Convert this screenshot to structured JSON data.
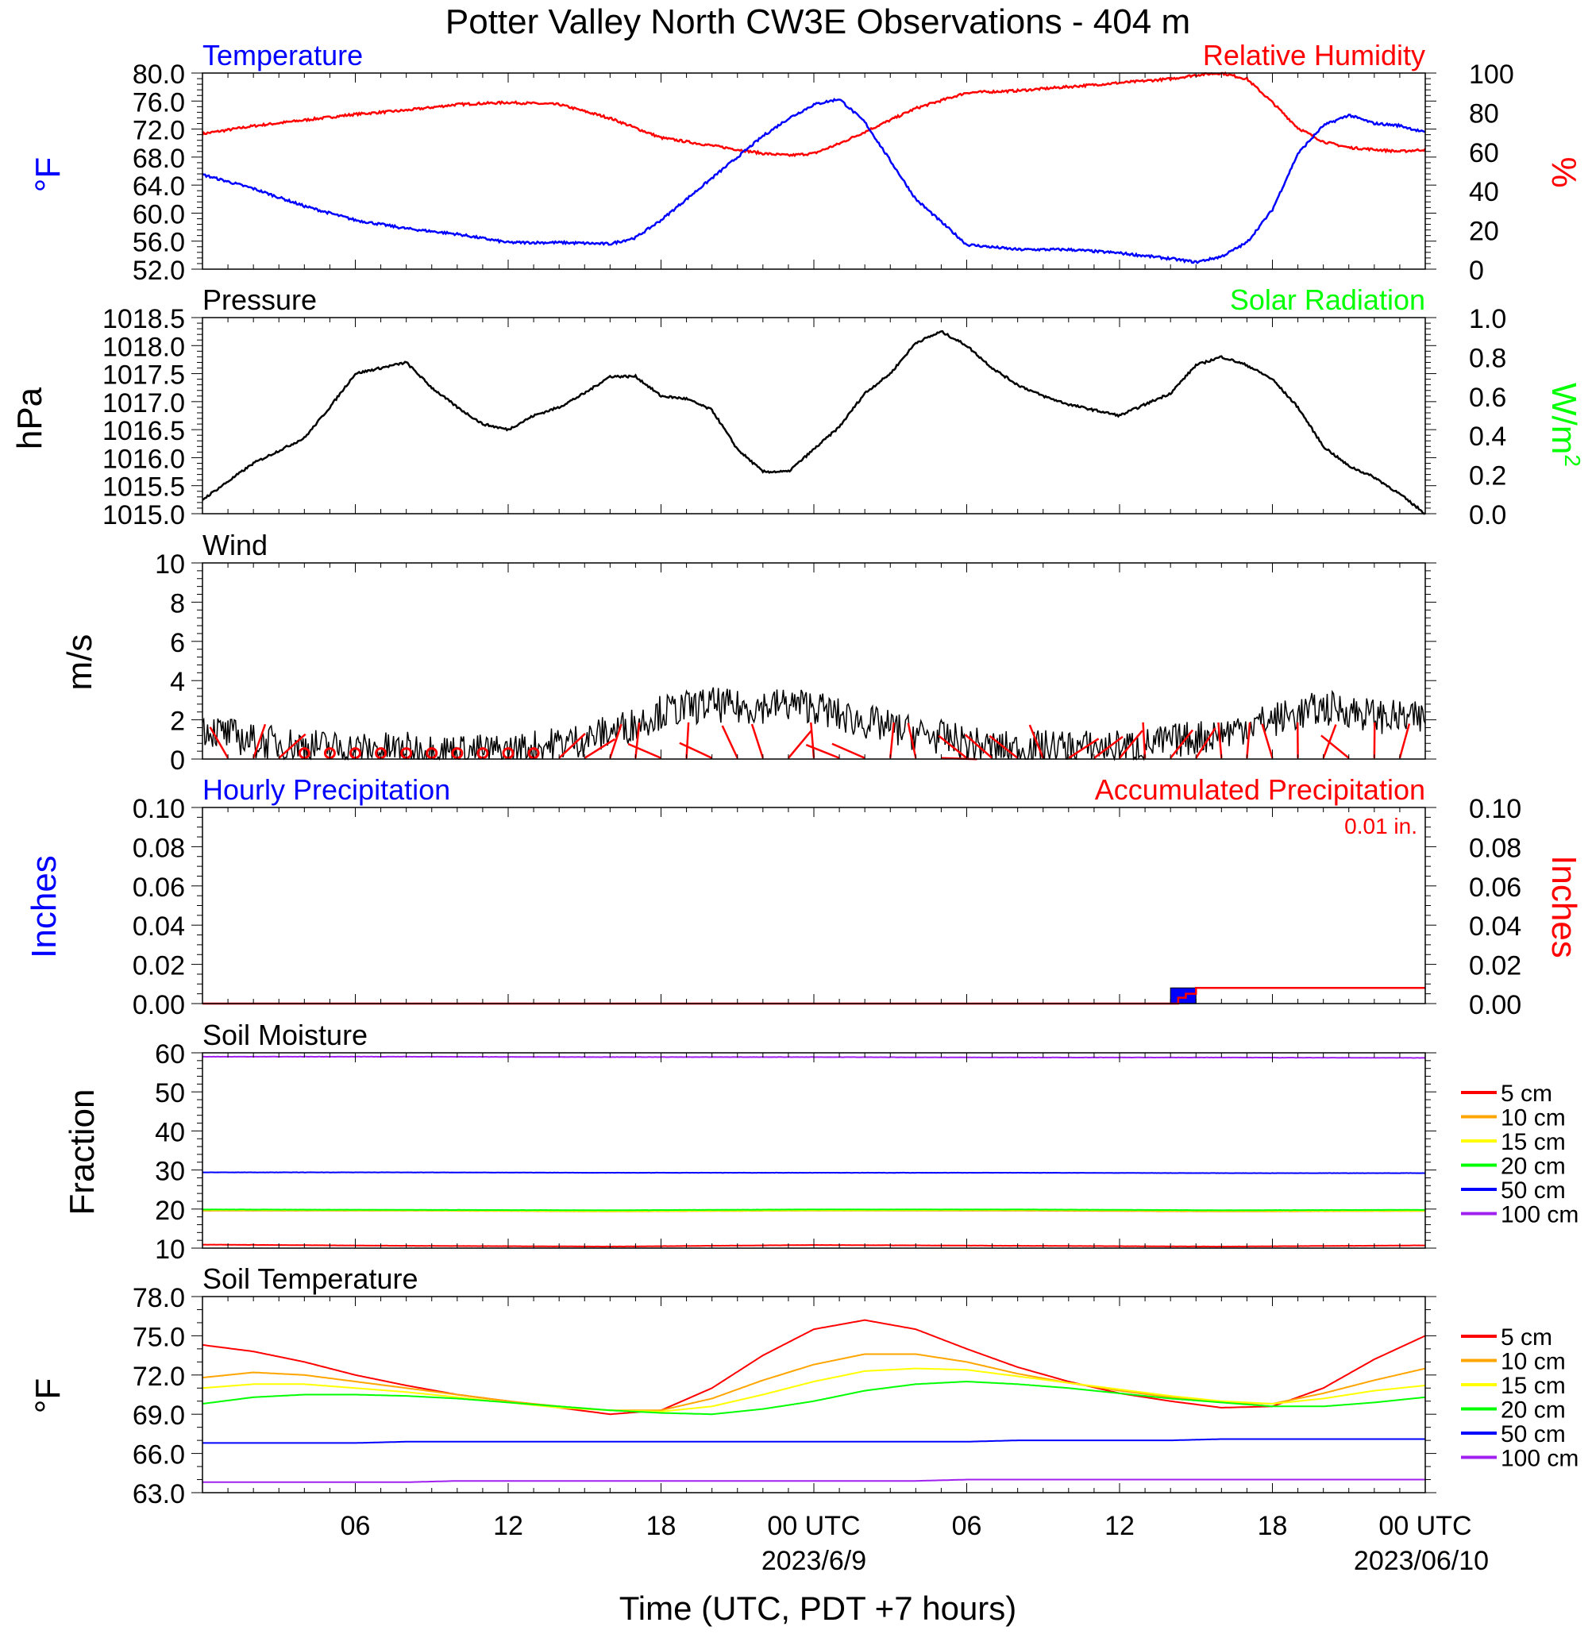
{
  "figure": {
    "title": "Potter Valley North CW3E Observations - 404 m",
    "xlabel": "Time (UTC, PDT +7 hours)",
    "x_ticks": [
      "06",
      "12",
      "18",
      "00 UTC",
      "06",
      "12",
      "18",
      "00 UTC"
    ],
    "x_dates": [
      "2023/6/9",
      "2023/06/10"
    ]
  },
  "colors": {
    "temperature": "#0000ff",
    "humidity": "#ff0000",
    "pressure": "#000000",
    "solar": "#00ff00",
    "wind": "#000000",
    "barbs": "#ff0000",
    "hourly_precip": "#0000ff",
    "accum_precip": "#ff0000",
    "d5": "#ff0000",
    "d10": "#ffa500",
    "d15": "#ffff00",
    "d20": "#00ff00",
    "d50": "#0000ff",
    "d100": "#a020f0"
  },
  "chart_data": [
    {
      "type": "line",
      "title": "Temperature",
      "title_right": "Relative Humidity",
      "ylabel": "°F",
      "ylabel_right": "%",
      "ylim": [
        52,
        80
      ],
      "ylim_right": [
        0,
        100
      ],
      "y_ticks": [
        "80.0",
        "76.0",
        "72.0",
        "68.0",
        "64.0",
        "60.0",
        "56.0",
        "52.0"
      ],
      "y_ticks_right": [
        "100",
        "80",
        "60",
        "40",
        "20",
        "0"
      ],
      "x": [
        0,
        2,
        4,
        6,
        8,
        10,
        12,
        14,
        16,
        17,
        18,
        20,
        22,
        23,
        24,
        25,
        26,
        28,
        30,
        32,
        34,
        36,
        38,
        39,
        40,
        41,
        42,
        43,
        44,
        45,
        46,
        47,
        48
      ],
      "series": [
        {
          "name": "Temperature",
          "axis": "left",
          "values": [
            65.5,
            63.5,
            61.0,
            59.0,
            57.8,
            57.0,
            55.8,
            55.8,
            55.6,
            56.5,
            59.0,
            65.0,
            71.0,
            73.5,
            75.5,
            76.3,
            73.0,
            62.0,
            55.5,
            54.8,
            54.8,
            54.3,
            53.5,
            53.0,
            53.8,
            55.8,
            60.5,
            68.5,
            72.5,
            74.0,
            72.8,
            72.5,
            71.5
          ]
        },
        {
          "name": "Relative Humidity",
          "axis": "right",
          "values": [
            69,
            73,
            76,
            79,
            81,
            84,
            85,
            84,
            77,
            72,
            67,
            63,
            59,
            58,
            59,
            64,
            70,
            82,
            90,
            91,
            93,
            95,
            97,
            99,
            100,
            97,
            85,
            72,
            65,
            62,
            61,
            60,
            61
          ]
        }
      ]
    },
    {
      "type": "line",
      "title": "Pressure",
      "title_right": "Solar Radiation",
      "ylabel": "hPa",
      "ylabel_right": "W/m",
      "ylabel_right_sup": "2",
      "ylim": [
        1015.0,
        1018.5
      ],
      "ylim_right": [
        0.0,
        1.0
      ],
      "y_ticks": [
        "1018.5",
        "1018.0",
        "1017.5",
        "1017.0",
        "1016.5",
        "1016.0",
        "1015.5",
        "1015.0"
      ],
      "y_ticks_right": [
        "1.0",
        "0.8",
        "0.6",
        "0.4",
        "0.2",
        "0.0"
      ],
      "x": [
        0,
        2,
        4,
        5,
        6,
        8,
        9,
        10,
        11,
        12,
        13,
        14,
        15,
        16,
        17,
        18,
        19,
        20,
        21,
        22,
        23,
        24,
        25,
        26,
        27,
        28,
        29,
        30,
        31,
        32,
        33,
        34,
        35,
        36,
        37,
        38,
        39,
        40,
        41,
        42,
        43,
        44,
        45,
        46,
        47,
        48
      ],
      "series": [
        {
          "name": "Pressure",
          "axis": "left",
          "values": [
            1015.25,
            1015.9,
            1016.35,
            1016.9,
            1017.5,
            1017.7,
            1017.25,
            1016.9,
            1016.6,
            1016.5,
            1016.75,
            1016.9,
            1017.15,
            1017.45,
            1017.45,
            1017.1,
            1017.05,
            1016.85,
            1016.15,
            1015.75,
            1015.75,
            1016.15,
            1016.55,
            1017.15,
            1017.5,
            1018.05,
            1018.25,
            1018.0,
            1017.6,
            1017.3,
            1017.1,
            1016.95,
            1016.85,
            1016.75,
            1016.95,
            1017.15,
            1017.65,
            1017.8,
            1017.65,
            1017.4,
            1016.9,
            1016.2,
            1015.85,
            1015.65,
            1015.35,
            1015.0
          ]
        }
      ]
    },
    {
      "type": "line",
      "title": "Wind",
      "ylabel": "m/s",
      "ylim": [
        0,
        10
      ],
      "y_ticks": [
        "10",
        "8",
        "6",
        "4",
        "2",
        "0"
      ],
      "x": [
        0,
        2,
        4,
        6,
        8,
        10,
        12,
        13,
        14,
        15,
        16,
        17,
        18,
        19,
        20,
        21,
        22,
        23,
        24,
        25,
        26,
        27,
        28,
        29,
        30,
        31,
        32,
        33,
        34,
        35,
        36,
        37,
        38,
        39,
        40,
        41,
        42,
        43,
        44,
        45,
        46,
        47,
        48
      ],
      "series": [
        {
          "name": "Wind",
          "values": [
            1.6,
            0.9,
            0.7,
            0.5,
            0.5,
            0.4,
            0.4,
            0.6,
            0.8,
            1.0,
            1.4,
            1.8,
            2.4,
            2.6,
            2.8,
            2.6,
            2.7,
            2.8,
            2.7,
            2.2,
            1.9,
            1.6,
            1.3,
            1.1,
            0.8,
            0.6,
            0.5,
            0.6,
            0.6,
            0.6,
            0.6,
            0.7,
            0.9,
            1.1,
            1.3,
            1.7,
            2.0,
            2.3,
            2.6,
            2.5,
            2.2,
            2.1,
            2.0
          ]
        }
      ]
    },
    {
      "type": "bar",
      "title": "Hourly Precipitation",
      "title_right": "Accumulated Precipitation",
      "annotation": "0.01 in.",
      "ylabel": "Inches",
      "ylabel_right": "Inches",
      "ylim": [
        0,
        0.1
      ],
      "y_ticks": [
        "0.10",
        "0.08",
        "0.06",
        "0.04",
        "0.02",
        "0.00"
      ],
      "y_ticks_right": [
        "0.10",
        "0.08",
        "0.06",
        "0.04",
        "0.02",
        "0.00"
      ],
      "series": [
        {
          "name": "Hourly Precipitation",
          "x": [
            38.5
          ],
          "values": [
            0.008
          ]
        },
        {
          "name": "Accumulated Precipitation",
          "x": [
            0,
            38,
            38.3,
            38.6,
            39,
            48
          ],
          "values": [
            0,
            0,
            0.003,
            0.005,
            0.008,
            0.008
          ]
        }
      ]
    },
    {
      "type": "line",
      "title": "Soil Moisture",
      "ylabel": "Fraction",
      "ylim": [
        10,
        60
      ],
      "y_ticks": [
        "60",
        "50",
        "40",
        "30",
        "20",
        "10"
      ],
      "x": [
        0,
        8,
        16,
        24,
        32,
        40,
        48
      ],
      "series": [
        {
          "name": "5 cm",
          "values": [
            10.9,
            10.6,
            10.4,
            10.8,
            10.6,
            10.4,
            10.7
          ]
        },
        {
          "name": "10 cm",
          "values": [
            19.6,
            19.6,
            19.4,
            19.6,
            19.6,
            19.4,
            19.5
          ]
        },
        {
          "name": "15 cm",
          "values": [
            19.8,
            19.7,
            19.5,
            19.7,
            19.8,
            19.6,
            19.6
          ]
        },
        {
          "name": "20 cm",
          "values": [
            19.9,
            19.8,
            19.7,
            19.9,
            19.9,
            19.7,
            19.8
          ]
        },
        {
          "name": "50 cm",
          "values": [
            29.4,
            29.4,
            29.3,
            29.3,
            29.3,
            29.2,
            29.2
          ]
        },
        {
          "name": "100 cm",
          "values": [
            59.0,
            59.0,
            58.9,
            58.9,
            58.8,
            58.8,
            58.7
          ]
        }
      ]
    },
    {
      "type": "line",
      "title": "Soil Temperature",
      "ylabel": "°F",
      "ylim": [
        63,
        78
      ],
      "y_ticks": [
        "78.0",
        "75.0",
        "72.0",
        "69.0",
        "66.0",
        "63.0"
      ],
      "x": [
        0,
        2,
        4,
        6,
        8,
        10,
        12,
        14,
        16,
        18,
        20,
        22,
        24,
        26,
        28,
        30,
        32,
        34,
        36,
        38,
        40,
        42,
        44,
        46,
        48
      ],
      "series": [
        {
          "name": "5 cm",
          "values": [
            74.3,
            73.8,
            73.0,
            72.0,
            71.2,
            70.5,
            70.0,
            69.5,
            69.0,
            69.3,
            71.0,
            73.5,
            75.5,
            76.2,
            75.5,
            74.0,
            72.6,
            71.5,
            70.6,
            70.0,
            69.5,
            69.6,
            71.0,
            73.2,
            75.0
          ]
        },
        {
          "name": "10 cm",
          "values": [
            71.8,
            72.2,
            72.0,
            71.5,
            71.0,
            70.5,
            70.0,
            69.6,
            69.3,
            69.3,
            70.2,
            71.6,
            72.8,
            73.6,
            73.6,
            73.0,
            72.1,
            71.4,
            70.8,
            70.3,
            69.9,
            69.8,
            70.6,
            71.6,
            72.5
          ]
        },
        {
          "name": "15 cm",
          "values": [
            71.0,
            71.3,
            71.3,
            71.0,
            70.7,
            70.3,
            69.9,
            69.5,
            69.3,
            69.2,
            69.6,
            70.5,
            71.5,
            72.3,
            72.5,
            72.4,
            71.9,
            71.4,
            70.9,
            70.4,
            70.0,
            69.8,
            70.2,
            70.8,
            71.2
          ]
        },
        {
          "name": "20 cm",
          "values": [
            69.8,
            70.3,
            70.5,
            70.5,
            70.4,
            70.2,
            69.9,
            69.6,
            69.3,
            69.1,
            69.0,
            69.4,
            70.0,
            70.8,
            71.3,
            71.5,
            71.3,
            71.0,
            70.6,
            70.2,
            69.9,
            69.6,
            69.6,
            69.9,
            70.3
          ]
        },
        {
          "name": "50 cm",
          "values": [
            66.8,
            66.8,
            66.8,
            66.8,
            66.9,
            66.9,
            66.9,
            66.9,
            66.9,
            66.9,
            66.9,
            66.9,
            66.9,
            66.9,
            66.9,
            66.9,
            67.0,
            67.0,
            67.0,
            67.0,
            67.1,
            67.1,
            67.1,
            67.1,
            67.1
          ]
        },
        {
          "name": "100 cm",
          "values": [
            63.8,
            63.8,
            63.8,
            63.8,
            63.8,
            63.9,
            63.9,
            63.9,
            63.9,
            63.9,
            63.9,
            63.9,
            63.9,
            63.9,
            63.9,
            64.0,
            64.0,
            64.0,
            64.0,
            64.0,
            64.0,
            64.0,
            64.0,
            64.0,
            64.0
          ]
        }
      ]
    }
  ]
}
